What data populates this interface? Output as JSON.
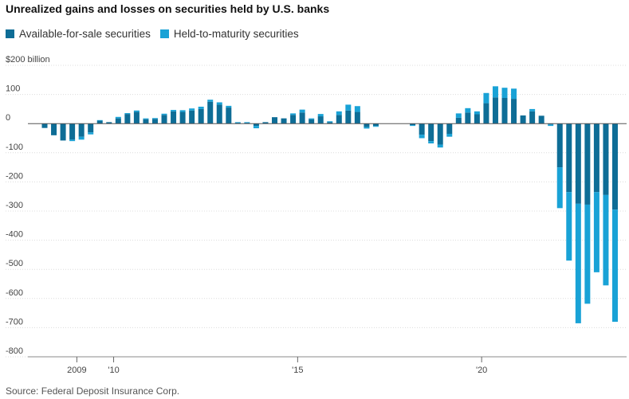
{
  "header": {
    "title": "Unrealized gains and losses on securities held by U.S. banks"
  },
  "legend": [
    {
      "label": "Available-for-sale securities",
      "color": "#0e6d96"
    },
    {
      "label": "Held-to-maturity securities",
      "color": "#19a2d6"
    }
  ],
  "footer": {
    "source": "Source: Federal Deposit Insurance Corp."
  },
  "chart_data": {
    "type": "bar",
    "stacked": true,
    "title": "Unrealized gains and losses on securities held by U.S. banks",
    "ylabel": "$200 billion",
    "ylim": [
      -800,
      200
    ],
    "yticks": [
      200,
      100,
      0,
      -100,
      -200,
      -300,
      -400,
      -500,
      -600,
      -700,
      -800
    ],
    "ytick_labels": [
      "$200 billion",
      "100",
      "0",
      "-100",
      "-200",
      "-300",
      "-400",
      "-500",
      "-600",
      "-700",
      "-800"
    ],
    "x_start": "2008 Q1",
    "xtick_labels": [
      {
        "label": "2009",
        "index": 4
      },
      {
        "label": "'10",
        "index": 8
      },
      {
        "label": "'15",
        "index": 28
      },
      {
        "label": "'20",
        "index": 48
      }
    ],
    "categories": [
      "2008 Q1",
      "2008 Q2",
      "2008 Q3",
      "2008 Q4",
      "2009 Q1",
      "2009 Q2",
      "2009 Q3",
      "2009 Q4",
      "2010 Q1",
      "2010 Q2",
      "2010 Q3",
      "2010 Q4",
      "2011 Q1",
      "2011 Q2",
      "2011 Q3",
      "2011 Q4",
      "2012 Q1",
      "2012 Q2",
      "2012 Q3",
      "2012 Q4",
      "2013 Q1",
      "2013 Q2",
      "2013 Q3",
      "2013 Q4",
      "2014 Q1",
      "2014 Q2",
      "2014 Q3",
      "2014 Q4",
      "2015 Q1",
      "2015 Q2",
      "2015 Q3",
      "2015 Q4",
      "2016 Q1",
      "2016 Q2",
      "2016 Q3",
      "2016 Q4",
      "2017 Q1",
      "2017 Q2",
      "2017 Q3",
      "2017 Q4",
      "2018 Q1",
      "2018 Q2",
      "2018 Q3",
      "2018 Q4",
      "2019 Q1",
      "2019 Q2",
      "2019 Q3",
      "2019 Q4",
      "2020 Q1",
      "2020 Q2",
      "2020 Q3",
      "2020 Q4",
      "2021 Q1",
      "2021 Q2",
      "2021 Q3",
      "2021 Q4",
      "2022 Q1",
      "2022 Q2",
      "2022 Q3",
      "2022 Q4",
      "2023 Q1",
      "2023 Q2",
      "2023 Q3"
    ],
    "series": [
      {
        "name": "Available-for-sale securities",
        "color": "#0e6d96",
        "values": [
          -15,
          -40,
          -58,
          -55,
          -45,
          -30,
          10,
          5,
          18,
          33,
          40,
          15,
          16,
          30,
          42,
          40,
          45,
          50,
          75,
          65,
          55,
          3,
          3,
          -8,
          5,
          22,
          18,
          30,
          38,
          15,
          25,
          5,
          30,
          45,
          40,
          -12,
          -8,
          0,
          0,
          0,
          -5,
          -38,
          -60,
          -72,
          -35,
          20,
          38,
          32,
          70,
          90,
          88,
          85,
          28,
          42,
          27,
          -3,
          -150,
          -235,
          -275,
          -278,
          -235,
          -245,
          -295
        ]
      },
      {
        "name": "Held-to-maturity securities",
        "color": "#19a2d6",
        "values": [
          0,
          0,
          0,
          -5,
          -10,
          -7,
          2,
          0,
          5,
          3,
          5,
          3,
          3,
          4,
          5,
          6,
          7,
          8,
          7,
          8,
          6,
          2,
          2,
          -8,
          0,
          0,
          0,
          5,
          10,
          3,
          8,
          3,
          12,
          20,
          20,
          -5,
          -3,
          0,
          0,
          0,
          -3,
          -12,
          -8,
          -10,
          -10,
          15,
          15,
          10,
          35,
          38,
          35,
          35,
          0,
          8,
          0,
          -5,
          -140,
          -235,
          -410,
          -340,
          -275,
          -310,
          -385
        ]
      }
    ]
  }
}
